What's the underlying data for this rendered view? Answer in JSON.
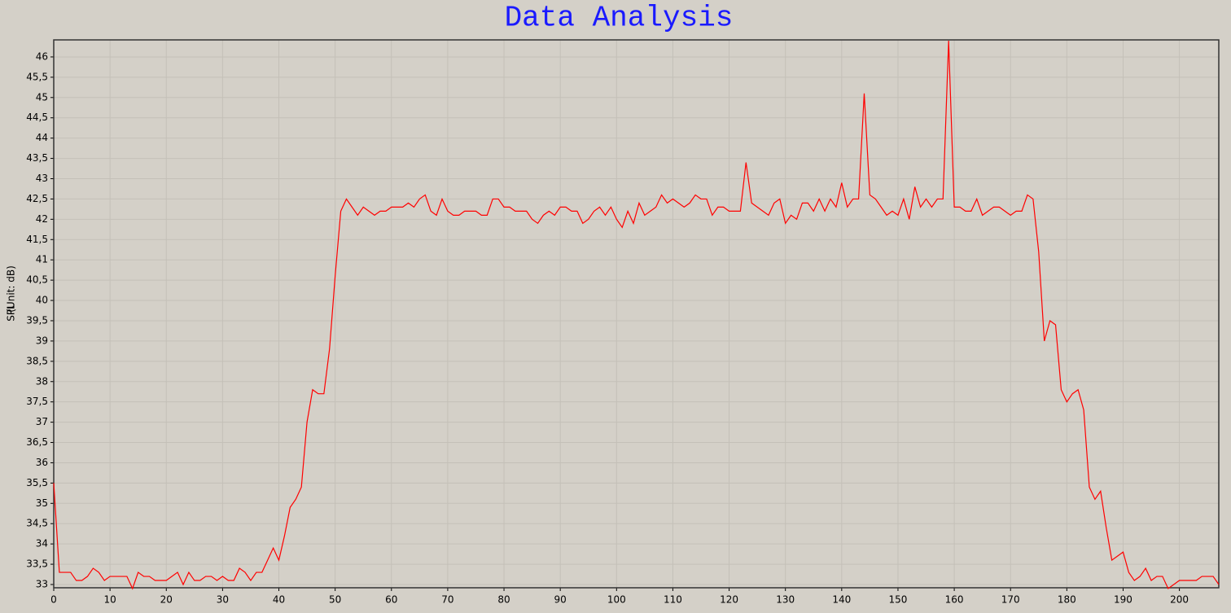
{
  "chart_data": {
    "type": "line",
    "title": "Data Analysis",
    "y_label": "SPL",
    "y_unit": "(Unit:  dB)",
    "color": "#ff0000",
    "grid": true,
    "xlim": [
      0,
      207
    ],
    "ylim": [
      32.92,
      46.42
    ],
    "xticks": [
      0,
      10,
      20,
      30,
      40,
      50,
      60,
      70,
      80,
      90,
      100,
      110,
      120,
      130,
      140,
      150,
      160,
      170,
      180,
      190,
      200
    ],
    "yticks": [
      33,
      {
        "value": 33.5,
        "label": "33,5"
      },
      34,
      {
        "value": 34.5,
        "label": "34,5"
      },
      35,
      {
        "value": 35.5,
        "label": "35,5"
      },
      36,
      {
        "value": 36.5,
        "label": "36,5"
      },
      37,
      {
        "value": 37.5,
        "label": "37,5"
      },
      38,
      {
        "value": 38.5,
        "label": "38,5"
      },
      39,
      {
        "value": 39.5,
        "label": "39,5"
      },
      40,
      {
        "value": 40.5,
        "label": "40,5"
      },
      41,
      {
        "value": 41.5,
        "label": "41,5"
      },
      42,
      {
        "value": 42.5,
        "label": "42,5"
      },
      43,
      {
        "value": 43.5,
        "label": "43,5"
      },
      44,
      {
        "value": 44.5,
        "label": "44,5"
      },
      45,
      {
        "value": 45.5,
        "label": "45,5"
      },
      46
    ],
    "x": [
      0,
      1,
      2,
      3,
      4,
      5,
      6,
      7,
      8,
      9,
      10,
      11,
      12,
      13,
      14,
      15,
      16,
      17,
      18,
      19,
      20,
      21,
      22,
      23,
      24,
      25,
      26,
      27,
      28,
      29,
      30,
      31,
      32,
      33,
      34,
      35,
      36,
      37,
      38,
      39,
      40,
      41,
      42,
      43,
      44,
      45,
      46,
      47,
      48,
      49,
      50,
      51,
      52,
      53,
      54,
      55,
      56,
      57,
      58,
      59,
      60,
      61,
      62,
      63,
      64,
      65,
      66,
      67,
      68,
      69,
      70,
      71,
      72,
      73,
      74,
      75,
      76,
      77,
      78,
      79,
      80,
      81,
      82,
      83,
      84,
      85,
      86,
      87,
      88,
      89,
      90,
      91,
      92,
      93,
      94,
      95,
      96,
      97,
      98,
      99,
      100,
      101,
      102,
      103,
      104,
      105,
      106,
      107,
      108,
      109,
      110,
      111,
      112,
      113,
      114,
      115,
      116,
      117,
      118,
      119,
      120,
      121,
      122,
      123,
      124,
      125,
      126,
      127,
      128,
      129,
      130,
      131,
      132,
      133,
      134,
      135,
      136,
      137,
      138,
      139,
      140,
      141,
      142,
      143,
      144,
      145,
      146,
      147,
      148,
      149,
      150,
      151,
      152,
      153,
      154,
      155,
      156,
      157,
      158,
      159,
      160,
      161,
      162,
      163,
      164,
      165,
      166,
      167,
      168,
      169,
      170,
      171,
      172,
      173,
      174,
      175,
      176,
      177,
      178,
      179,
      180,
      181,
      182,
      183,
      184,
      185,
      186,
      187,
      188,
      189,
      190,
      191,
      192,
      193,
      194,
      195,
      196,
      197,
      198,
      199,
      200,
      201,
      202,
      203,
      204,
      205,
      206,
      207
    ],
    "values": [
      35.5,
      33.3,
      33.3,
      33.3,
      33.1,
      33.1,
      33.2,
      33.4,
      33.3,
      33.1,
      33.2,
      33.2,
      33.2,
      33.2,
      32.9,
      33.3,
      33.2,
      33.2,
      33.1,
      33.1,
      33.1,
      33.2,
      33.3,
      33.0,
      33.3,
      33.1,
      33.1,
      33.2,
      33.2,
      33.1,
      33.2,
      33.1,
      33.1,
      33.4,
      33.3,
      33.1,
      33.3,
      33.3,
      33.6,
      33.9,
      33.6,
      34.2,
      34.9,
      35.1,
      35.4,
      37.0,
      37.8,
      37.7,
      37.7,
      38.8,
      40.6,
      42.2,
      42.5,
      42.3,
      42.1,
      42.3,
      42.2,
      42.1,
      42.2,
      42.2,
      42.3,
      42.3,
      42.3,
      42.4,
      42.3,
      42.5,
      42.6,
      42.2,
      42.1,
      42.5,
      42.2,
      42.1,
      42.1,
      42.2,
      42.2,
      42.2,
      42.1,
      42.1,
      42.5,
      42.5,
      42.3,
      42.3,
      42.2,
      42.2,
      42.2,
      42.0,
      41.9,
      42.1,
      42.2,
      42.1,
      42.3,
      42.3,
      42.2,
      42.2,
      41.9,
      42.0,
      42.2,
      42.3,
      42.1,
      42.3,
      42.0,
      41.8,
      42.2,
      41.9,
      42.4,
      42.1,
      42.2,
      42.3,
      42.6,
      42.4,
      42.5,
      42.4,
      42.3,
      42.4,
      42.6,
      42.5,
      42.5,
      42.1,
      42.3,
      42.3,
      42.2,
      42.2,
      42.2,
      43.4,
      42.4,
      42.3,
      42.2,
      42.1,
      42.4,
      42.5,
      41.9,
      42.1,
      42.0,
      42.4,
      42.4,
      42.2,
      42.5,
      42.2,
      42.5,
      42.3,
      42.9,
      42.3,
      42.5,
      42.5,
      45.1,
      42.6,
      42.5,
      42.3,
      42.1,
      42.2,
      42.1,
      42.5,
      42.0,
      42.8,
      42.3,
      42.5,
      42.3,
      42.5,
      42.5,
      46.4,
      42.3,
      42.3,
      42.2,
      42.2,
      42.5,
      42.1,
      42.2,
      42.3,
      42.3,
      42.2,
      42.1,
      42.2,
      42.2,
      42.6,
      42.5,
      41.2,
      39.0,
      39.5,
      39.4,
      37.8,
      37.5,
      37.7,
      37.8,
      37.3,
      35.4,
      35.1,
      35.3,
      34.4,
      33.6,
      33.7,
      33.8,
      33.3,
      33.1,
      33.2,
      33.4,
      33.1,
      33.2,
      33.2,
      32.9,
      33.0,
      33.1,
      33.1,
      33.1,
      33.1,
      33.2,
      33.2,
      33.2,
      33.0
    ]
  }
}
